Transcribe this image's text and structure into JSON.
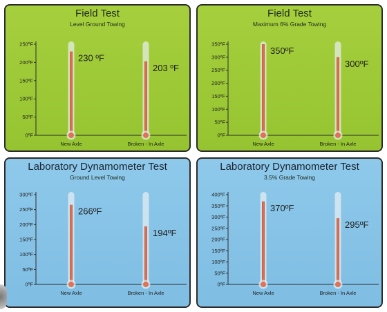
{
  "panels": [
    {
      "title": "Field Test",
      "subtitle": "Level Ground Towing",
      "theme": "green"
    },
    {
      "title": "Field Test",
      "subtitle": "Maximum 6% Grade Towing",
      "theme": "green"
    },
    {
      "title": "Laboratory Dynamometer Test",
      "subtitle": "Ground Level Towing",
      "theme": "blue"
    },
    {
      "title": "Laboratory Dynamometer Test",
      "subtitle": "3.5% Grade Towing",
      "theme": "blue"
    }
  ],
  "chart_data": [
    {
      "type": "bar",
      "title": "Field Test",
      "subtitle": "Level Ground Towing",
      "categories": [
        "New Axle",
        "Broken - In Axle"
      ],
      "values": [
        230,
        203
      ],
      "value_labels": [
        "230 ºF",
        "203 ºF"
      ],
      "ylim": [
        0,
        250
      ],
      "yticks": [
        0,
        50,
        100,
        150,
        200,
        250
      ],
      "ytick_labels": [
        "0ºF",
        "50ºF",
        "100ºF",
        "150ºF",
        "200ºF",
        "250ºF"
      ],
      "tube_max": 250
    },
    {
      "type": "bar",
      "title": "Field Test",
      "subtitle": "Maximum 6% Grade Towing",
      "categories": [
        "New Axle",
        "Broken - In Axle"
      ],
      "values": [
        350,
        300
      ],
      "value_labels": [
        "350ºF",
        "300ºF"
      ],
      "ylim": [
        0,
        350
      ],
      "yticks": [
        0,
        50,
        100,
        150,
        200,
        250,
        300,
        350
      ],
      "ytick_labels": [
        "0ºF",
        "50ºF",
        "100ºF",
        "150ºF",
        "200ºF",
        "250ºF",
        "300ºF",
        "350ºF"
      ],
      "tube_max": 350
    },
    {
      "type": "bar",
      "title": "Laboratory Dynamometer Test",
      "subtitle": "Ground Level Towing",
      "categories": [
        "New Axle",
        "Broken - In Axle"
      ],
      "values": [
        266,
        194
      ],
      "value_labels": [
        "266ºF",
        "194ºF"
      ],
      "ylim": [
        0,
        300
      ],
      "yticks": [
        0,
        50,
        100,
        150,
        200,
        250,
        300
      ],
      "ytick_labels": [
        "0ºF",
        "50ºF",
        "100ºF",
        "150ºF",
        "200ºF",
        "250ºF",
        "300ºF"
      ],
      "tube_max": 300
    },
    {
      "type": "bar",
      "title": "Laboratory Dynamometer Test",
      "subtitle": "3.5% Grade Towing",
      "categories": [
        "New Axle",
        "Broken - In Axle"
      ],
      "values": [
        370,
        295
      ],
      "value_labels": [
        "370ºF",
        "295ºF"
      ],
      "ylim": [
        0,
        400
      ],
      "yticks": [
        0,
        50,
        100,
        150,
        200,
        250,
        300,
        350,
        400
      ],
      "ytick_labels": [
        "0ºF",
        "50ºF",
        "100ºF",
        "150ºF",
        "200ºF",
        "250ºF",
        "300ºF",
        "350ºF",
        "400ºF"
      ],
      "tube_max": 400
    }
  ],
  "colors": {
    "mercury": "#e0765a",
    "mercury_edge": "#c85a3e",
    "tube": "#eaf0f2",
    "bulb": "#e07255",
    "axis": "#2b2b2b"
  }
}
